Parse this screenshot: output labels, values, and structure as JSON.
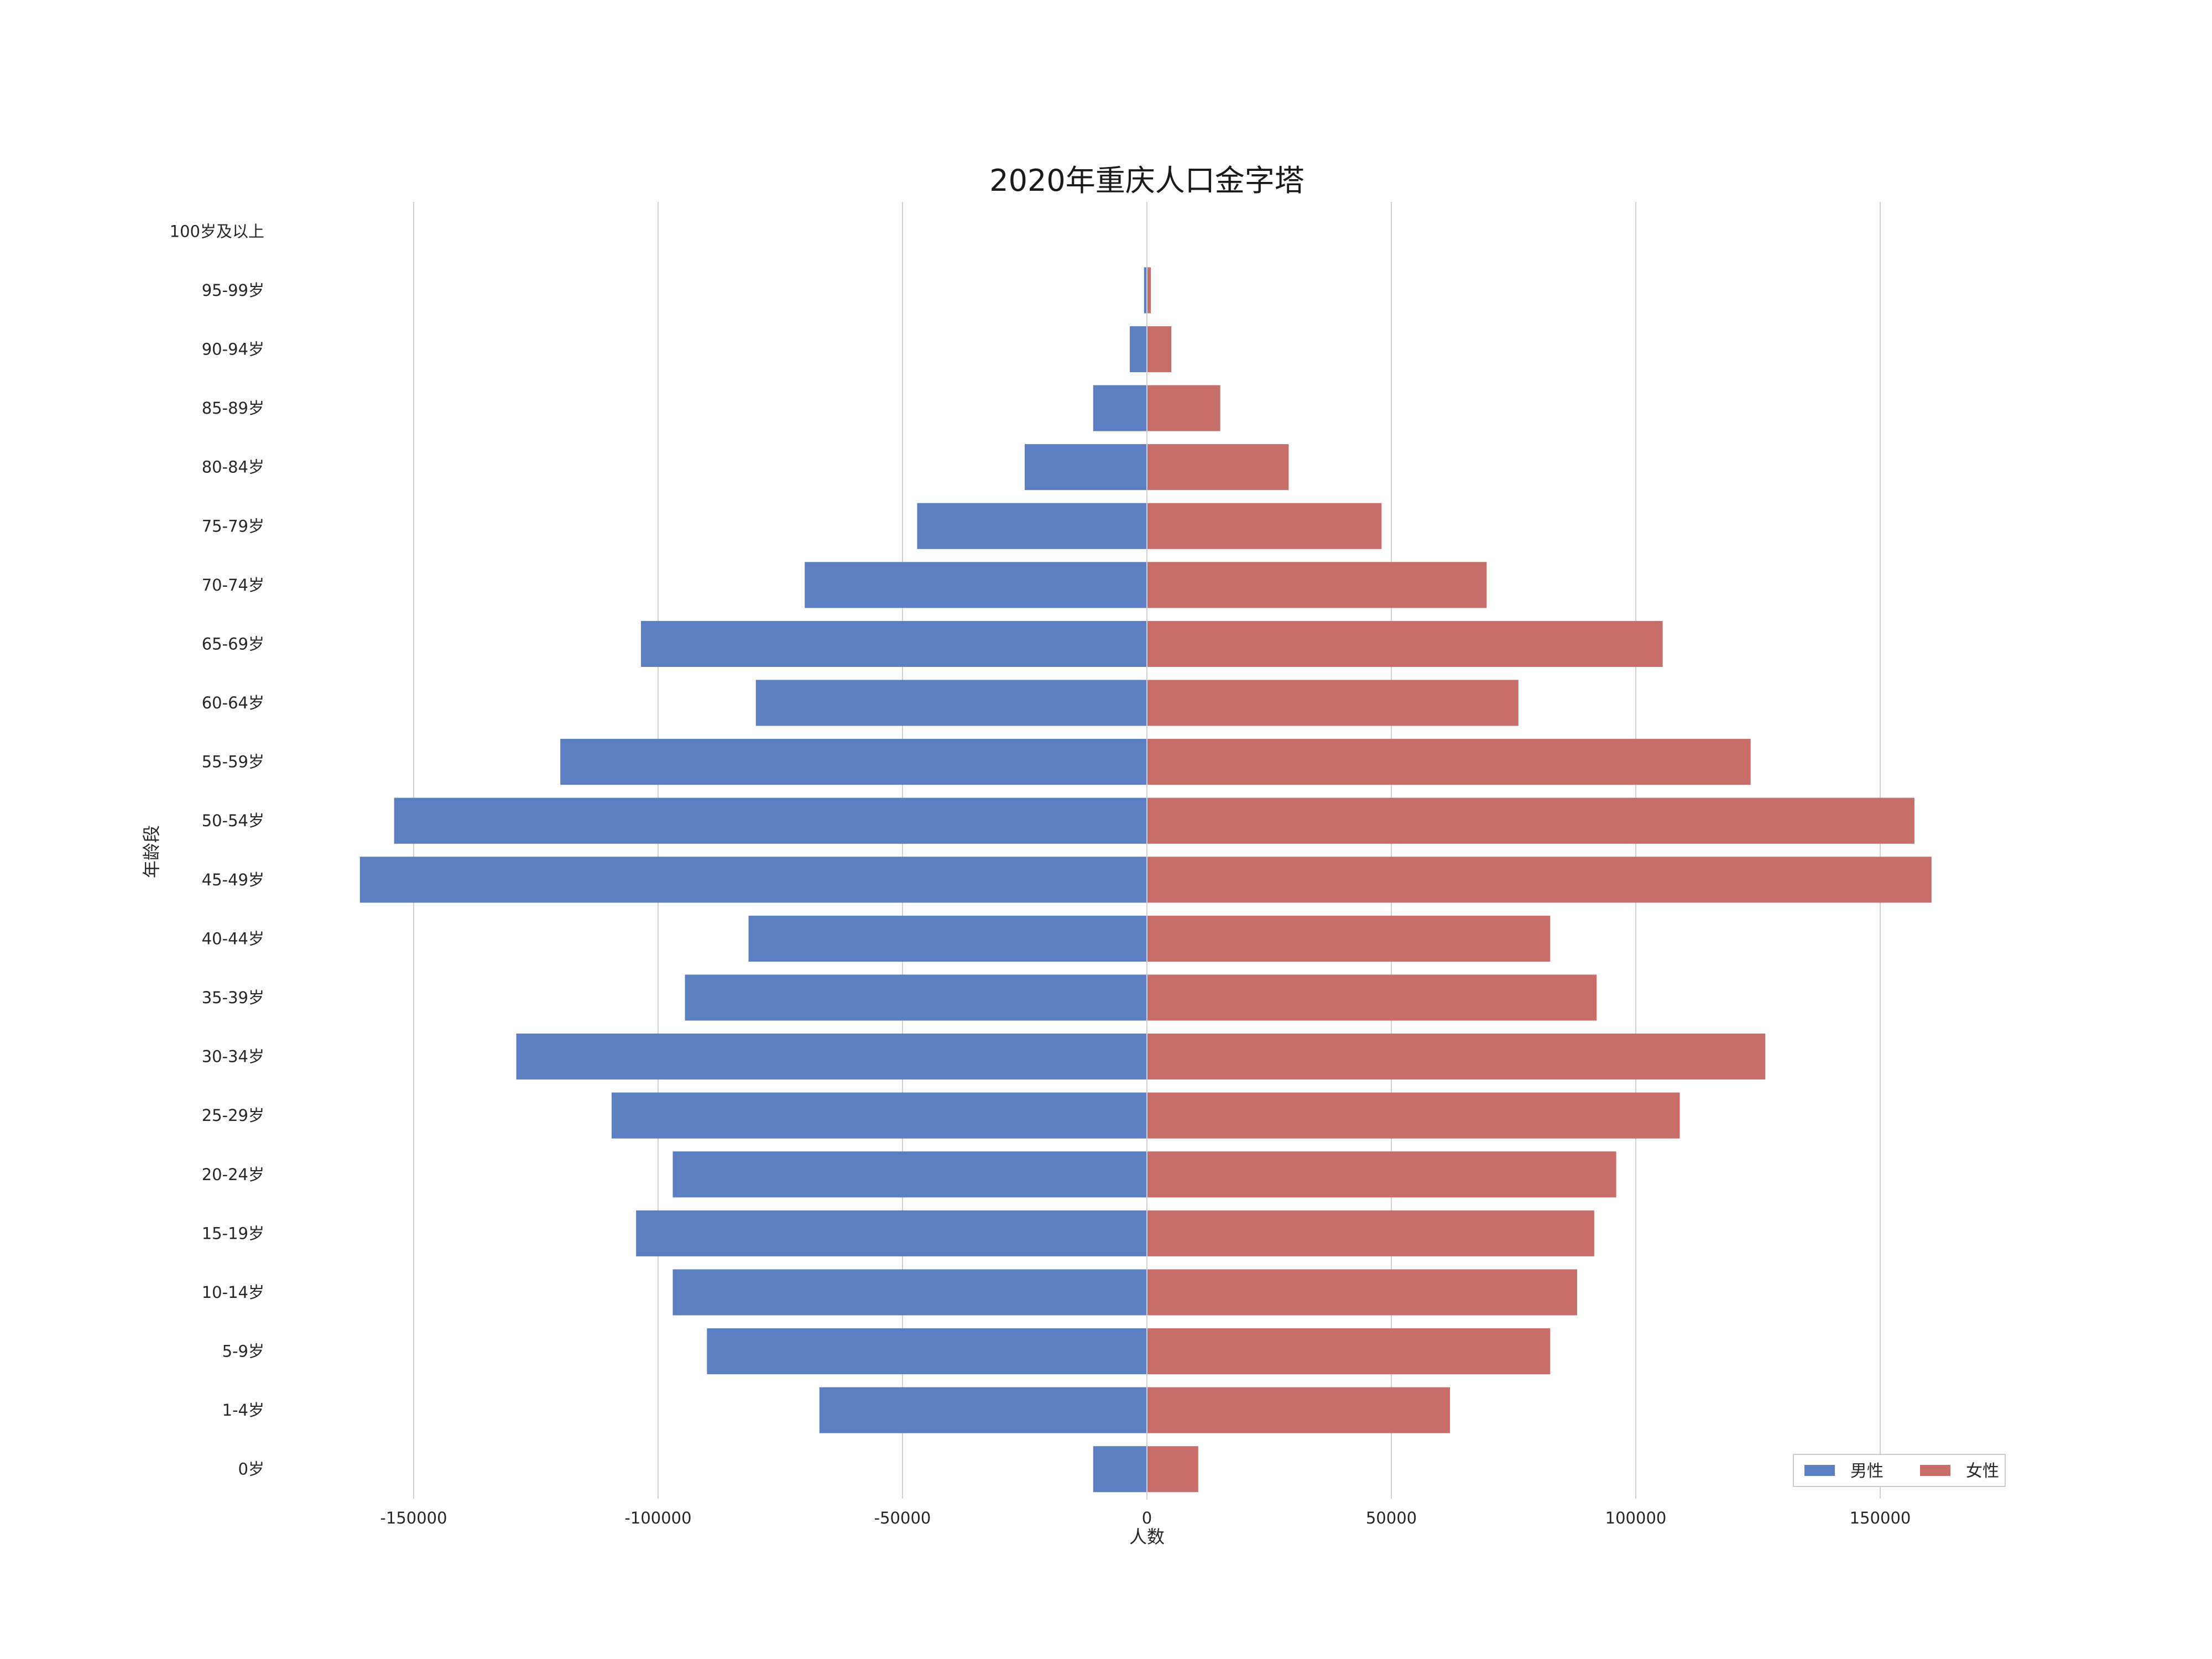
{
  "chart_data": {
    "type": "bar",
    "orientation": "horizontal",
    "layout": "population-pyramid",
    "title": "2020年重庆人口金字塔",
    "xlabel": "人数",
    "ylabel": "年龄段",
    "categories": [
      "0岁",
      "1-4岁",
      "5-9岁",
      "10-14岁",
      "15-19岁",
      "20-24岁",
      "25-29岁",
      "30-34岁",
      "35-39岁",
      "40-44岁",
      "45-49岁",
      "50-54岁",
      "55-59岁",
      "60-64岁",
      "65-69岁",
      "70-74岁",
      "75-79岁",
      "80-84岁",
      "85-89岁",
      "90-94岁",
      "95-99岁",
      "100岁及以上"
    ],
    "series": [
      {
        "name": "男性",
        "color": "#5b7fc1",
        "values": [
          -11000,
          -67000,
          -90000,
          -97000,
          -104500,
          -97000,
          -109500,
          -129000,
          -94500,
          -81500,
          -161000,
          -154000,
          -120000,
          -80000,
          -103500,
          -70000,
          -47000,
          -25000,
          -11000,
          -3500,
          -600,
          0
        ]
      },
      {
        "name": "女性",
        "color": "#c76e6b",
        "values": [
          10500,
          62000,
          82500,
          88000,
          91500,
          96000,
          109000,
          126500,
          92000,
          82500,
          160500,
          157000,
          123500,
          76000,
          105500,
          69500,
          48000,
          29000,
          15000,
          5000,
          800,
          0
        ]
      }
    ],
    "xlim": [
      -180000,
      180000
    ],
    "xticks": [
      -150000,
      -100000,
      -50000,
      0,
      50000,
      100000,
      150000
    ],
    "grid": {
      "x": true,
      "y": false
    },
    "legend": {
      "placement": "bottom-right",
      "columns": 2
    }
  }
}
